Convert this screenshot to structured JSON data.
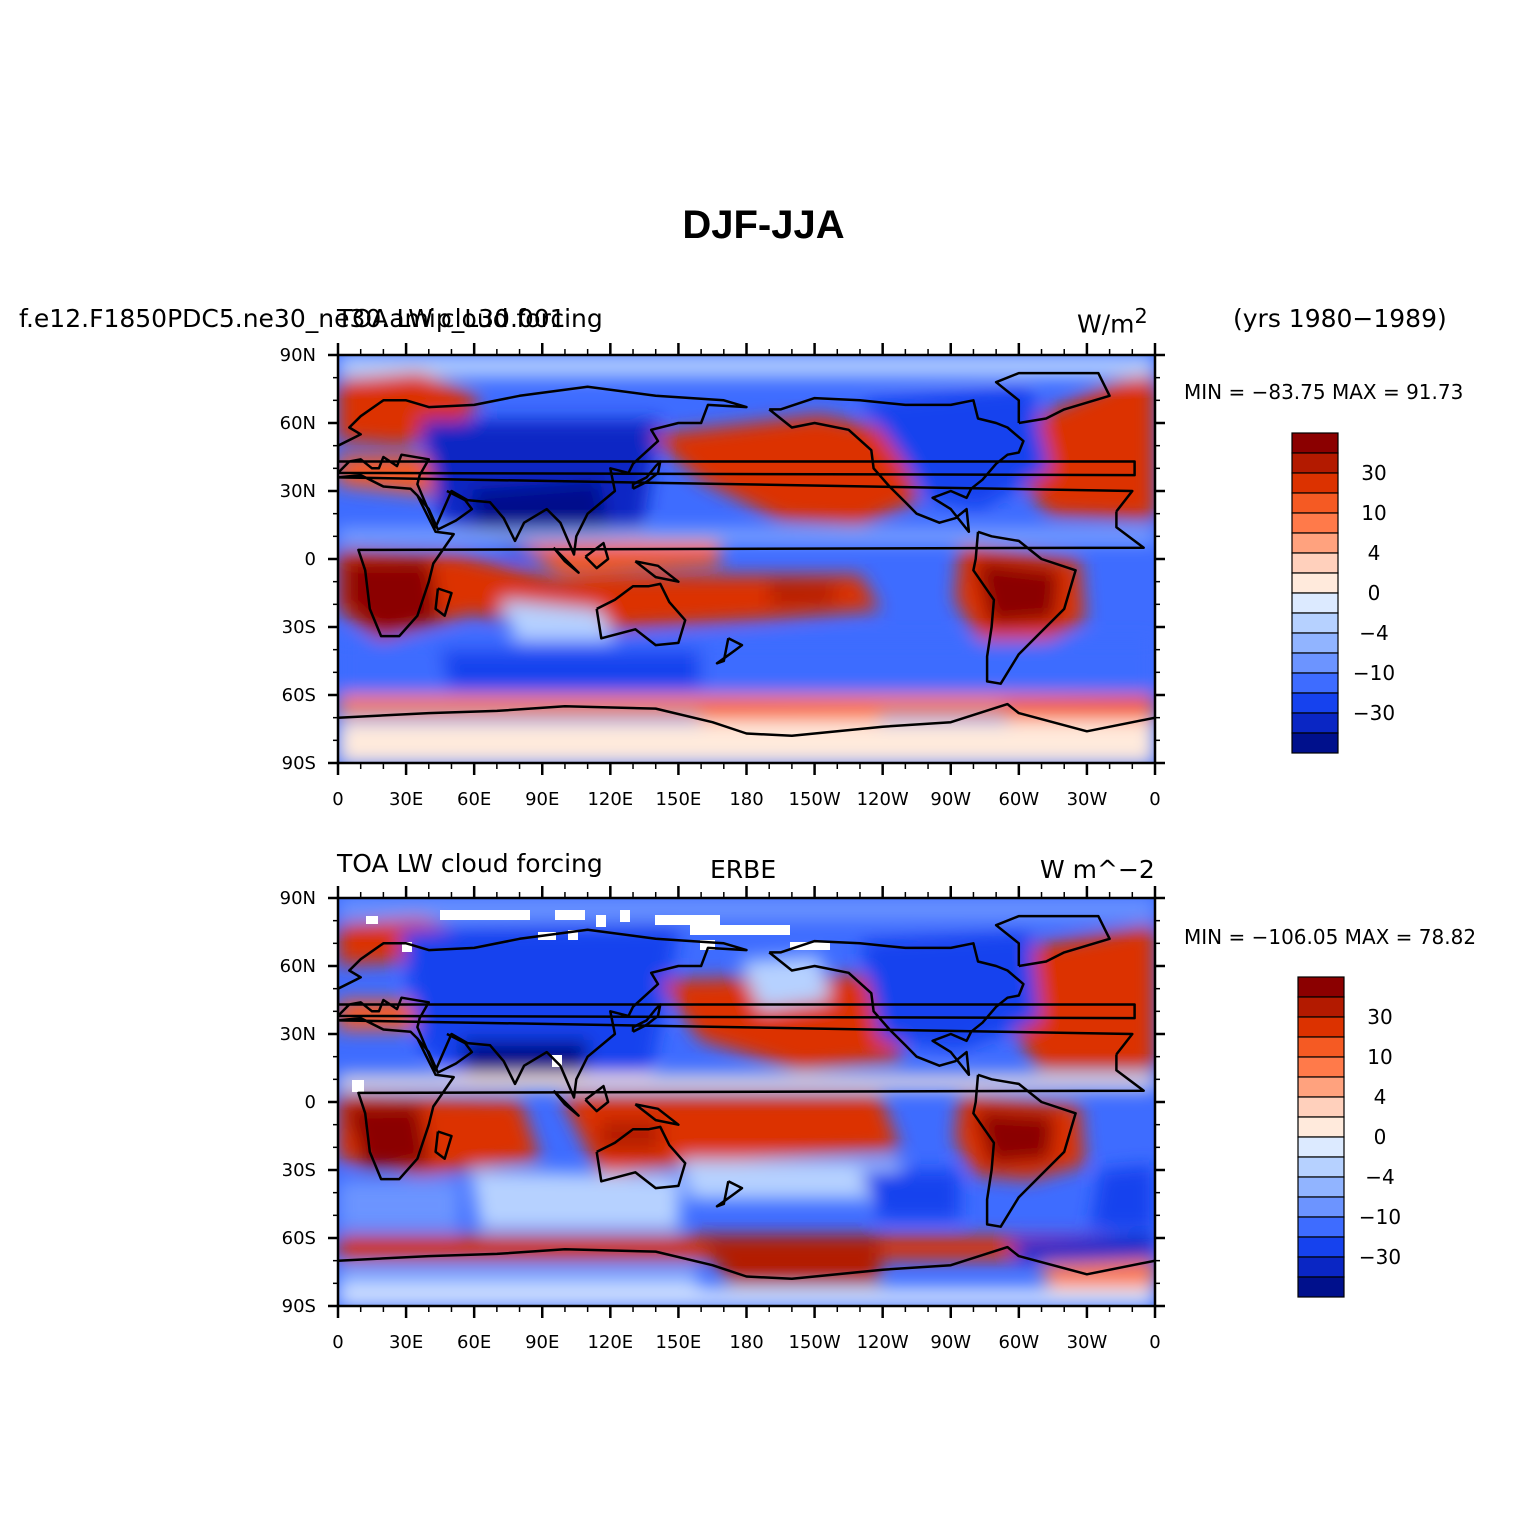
{
  "title": "DJF-JJA",
  "top_panel": {
    "case_name": "f.e12.F1850PDC5.ne30_ne30.amip_L30.001",
    "variable": "TOA LW cloud forcing",
    "units_html": "W/m<sup>2</sup>",
    "years": "(yrs 1980−1989)",
    "min_max": "MIN = −83.75 MAX =  91.73"
  },
  "bottom_panel": {
    "variable": "TOA LW cloud forcing",
    "dataset": "ERBE",
    "units": "W m^−2",
    "min_max": "MIN = −106.05 MAX =  78.82"
  },
  "lat_ticks": [
    "90N",
    "60N",
    "30N",
    "0",
    "30S",
    "60S",
    "90S"
  ],
  "lon_ticks": [
    "0",
    "30E",
    "60E",
    "90E",
    "120E",
    "150E",
    "180",
    "150W",
    "120W",
    "90W",
    "60W",
    "30W",
    "0"
  ],
  "colorbar": {
    "colors": [
      "#8b0000",
      "#b31a00",
      "#dc3200",
      "#f55a23",
      "#ff7a4a",
      "#ffa27e",
      "#ffd0bc",
      "#ffeadc",
      "#dceaff",
      "#b6d1ff",
      "#91b4ff",
      "#6c94ff",
      "#3e6cff",
      "#1642ee",
      "#0a26c4",
      "#00108c"
    ],
    "labels": [
      "30",
      "10",
      "4",
      "0",
      "−4",
      "−10",
      "−30"
    ]
  },
  "colors": {
    "warm": "#dc3200",
    "cool": "#1642ee",
    "land_outline": "#000000"
  }
}
